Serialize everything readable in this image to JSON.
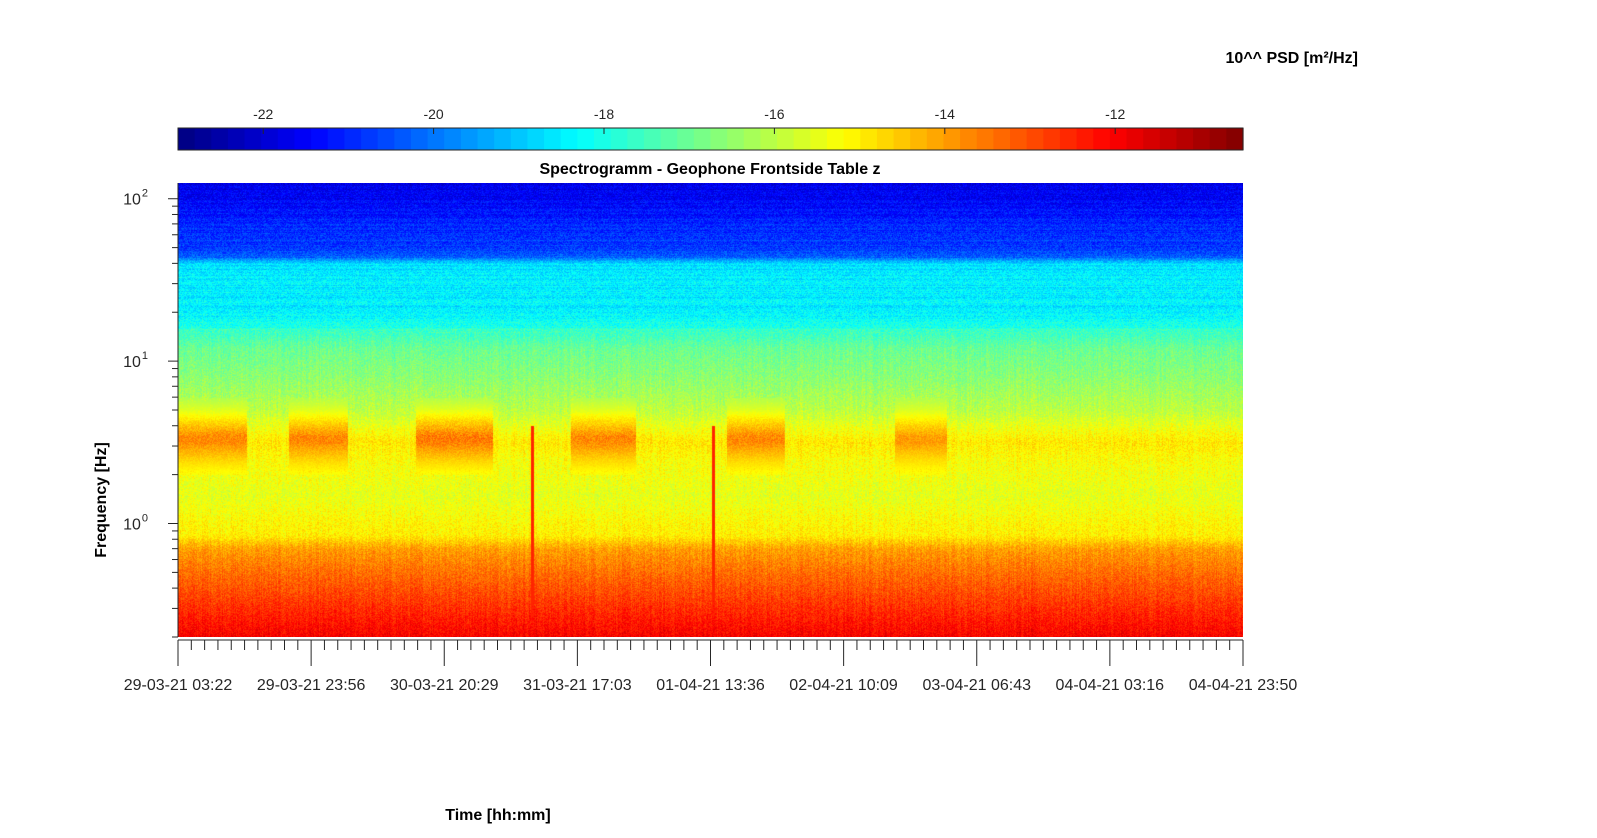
{
  "chart_data": {
    "type": "heatmap",
    "title": "Spectrogramm - Geophone Frontside Table z",
    "xlabel": "Time [hh:mm]",
    "ylabel": "Frequency [Hz]",
    "colorbar_label": "10^^ PSD [m²/Hz]",
    "colormap": "jet",
    "color_range": [
      -23,
      -10.5
    ],
    "colorbar_ticks": [
      "-22",
      "-20",
      "-18",
      "-16",
      "-14",
      "-12"
    ],
    "colorbar_tick_values": [
      -22,
      -20,
      -18,
      -16,
      -14,
      -12
    ],
    "colorbar_placement": "top",
    "x_tick_labels": [
      "29-03-21 03:22",
      "29-03-21 23:56",
      "30-03-21 20:29",
      "31-03-21 17:03",
      "01-04-21 13:36",
      "02-04-21 10:09",
      "03-04-21 06:43",
      "04-04-21 03:16",
      "04-04-21 23:50"
    ],
    "xlim": [
      "29-03-21 03:22",
      "04-04-21 23:50"
    ],
    "y_scale": "log",
    "ylim": [
      0.2,
      125
    ],
    "y_ticks": [
      {
        "base": "10",
        "exp": "0",
        "value": 1
      },
      {
        "base": "10",
        "exp": "1",
        "value": 10
      },
      {
        "base": "10",
        "exp": "2",
        "value": 100
      }
    ],
    "psd_profile_by_frequency": [
      {
        "freq": 0.2,
        "psd": -12.0
      },
      {
        "freq": 0.3,
        "psd": -12.6
      },
      {
        "freq": 0.5,
        "psd": -13.4
      },
      {
        "freq": 0.7,
        "psd": -14.0
      },
      {
        "freq": 0.85,
        "psd": -15.0
      },
      {
        "freq": 1.0,
        "psd": -15.1
      },
      {
        "freq": 1.5,
        "psd": -15.5
      },
      {
        "freq": 2.5,
        "psd": -15.2
      },
      {
        "freq": 3.2,
        "psd": -14.9
      },
      {
        "freq": 5,
        "psd": -16.0
      },
      {
        "freq": 8,
        "psd": -16.6
      },
      {
        "freq": 12,
        "psd": -17.0
      },
      {
        "freq": 15,
        "psd": -17.6
      },
      {
        "freq": 20,
        "psd": -18.5
      },
      {
        "freq": 30,
        "psd": -18.5
      },
      {
        "freq": 40,
        "psd": -18.7
      },
      {
        "freq": 45,
        "psd": -20.5
      },
      {
        "freq": 70,
        "psd": -21.0
      },
      {
        "freq": 125,
        "psd": -21.8
      }
    ],
    "daytime_activity_bands": [
      {
        "start": "29-03-21 03:22",
        "end": "29-03-21 14:00",
        "freq_range": [
          2,
          6
        ],
        "peak_psd": -13.5
      },
      {
        "start": "29-03-21 20:30",
        "end": "30-03-21 05:30",
        "freq_range": [
          2,
          6
        ],
        "peak_psd": -13.5
      },
      {
        "start": "30-03-21 16:00",
        "end": "31-03-21 04:00",
        "freq_range": [
          2,
          6
        ],
        "peak_psd": -13.3
      },
      {
        "start": "31-03-21 16:00",
        "end": "01-04-21 02:00",
        "freq_range": [
          2,
          6
        ],
        "peak_psd": -13.5
      },
      {
        "start": "01-04-21 16:00",
        "end": "02-04-21 01:00",
        "freq_range": [
          2,
          6
        ],
        "peak_psd": -13.5
      },
      {
        "start": "02-04-21 18:00",
        "end": "03-04-21 02:00",
        "freq_range": [
          2,
          6
        ],
        "peak_psd": -13.8
      }
    ],
    "broadband_events": [
      {
        "time": "31-03-21 10:00",
        "freq_range": [
          0.25,
          4
        ],
        "psd": -12.5
      },
      {
        "time": "01-04-21 14:00",
        "freq_range": [
          0.25,
          4
        ],
        "psd": -12.5
      }
    ]
  }
}
